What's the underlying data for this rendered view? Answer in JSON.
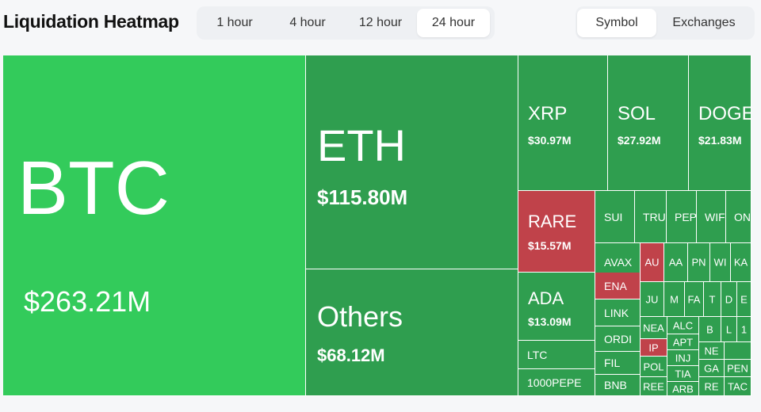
{
  "header": {
    "title": "Liquidation Heatmap",
    "time_options": [
      "1 hour",
      "4 hour",
      "12 hour",
      "24 hour"
    ],
    "time_selected": "24 hour",
    "view_options": [
      "Symbol",
      "Exchanges"
    ],
    "view_selected": "Symbol"
  },
  "colors": {
    "long_green": "#2f9e4f",
    "top_green": "#33cb5b",
    "short_red": "#c0424a"
  },
  "tiles": {
    "btc": {
      "symbol": "BTC",
      "value": "$263.21M"
    },
    "eth": {
      "symbol": "ETH",
      "value": "$115.80M"
    },
    "others": {
      "symbol": "Others",
      "value": "$68.12M"
    },
    "xrp": {
      "symbol": "XRP",
      "value": "$30.97M"
    },
    "sol": {
      "symbol": "SOL",
      "value": "$27.92M"
    },
    "doge": {
      "symbol": "DOGE",
      "value": "$21.83M"
    },
    "rare": {
      "symbol": "RARE",
      "value": "$15.57M"
    },
    "ada": {
      "symbol": "ADA",
      "value": "$13.09M"
    },
    "ltc": "LTC",
    "pepe1000": "1000PEPE",
    "sui": "SUI",
    "tru": "TRU",
    "pep": "PEP",
    "wif": "WIF",
    "on": "ON",
    "avax": "AVAX",
    "au": "AU",
    "aa": "AA",
    "pn": "PN",
    "wi": "WI",
    "ka": "KA",
    "ena": "ENA",
    "ju": "JU",
    "m": "M",
    "fa": "FA",
    "t": "T",
    "d": "D",
    "e": "E",
    "link": "LINK",
    "nea": "NEA",
    "alc": "ALC",
    "b": "B",
    "l": "L",
    "one": "1",
    "ordi": "ORDI",
    "ip": "IP",
    "apt": "APT",
    "fil": "FIL",
    "inj": "INJ",
    "ne": "NE",
    "pol": "POL",
    "tia": "TIA",
    "ga": "GA",
    "bnb": "BNB",
    "ree": "REE",
    "arb": "ARB",
    "re": "RE",
    "pen": "PEN",
    "tac": "TAC"
  }
}
